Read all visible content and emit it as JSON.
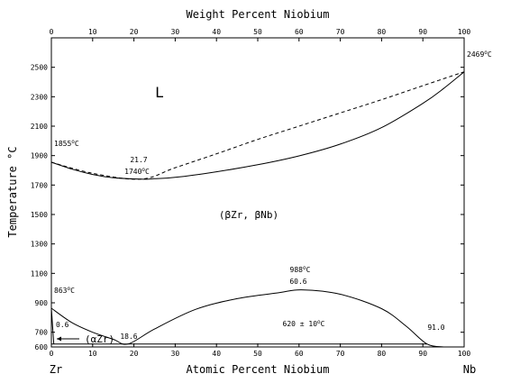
{
  "chart_data": {
    "type": "line",
    "title": "",
    "top_axis_label": "Weight Percent Niobium",
    "xlabel": "Atomic Percent Niobium",
    "ylabel": "Temperature °C",
    "xlim": [
      0,
      100
    ],
    "ylim": [
      600,
      2700
    ],
    "x_ticks": [
      0,
      10,
      20,
      30,
      40,
      50,
      60,
      70,
      80,
      90,
      100
    ],
    "top_ticks": [
      0,
      10,
      20,
      30,
      40,
      50,
      60,
      70,
      80,
      90,
      100
    ],
    "y_ticks": [
      600,
      700,
      900,
      1100,
      1300,
      1500,
      1700,
      1900,
      2100,
      2300,
      2500
    ],
    "left_element": "Zr",
    "right_element": "Nb",
    "grid": false,
    "series": [
      {
        "style": "solid",
        "points": [
          [
            0,
            1855
          ],
          [
            5,
            1808
          ],
          [
            10,
            1772
          ],
          [
            15,
            1750
          ],
          [
            21.7,
            1740
          ],
          [
            25,
            1743
          ],
          [
            30,
            1752
          ],
          [
            40,
            1790
          ],
          [
            50,
            1838
          ],
          [
            60,
            1898
          ],
          [
            70,
            1978
          ],
          [
            80,
            2090
          ],
          [
            90,
            2255
          ],
          [
            95,
            2355
          ],
          [
            100,
            2469
          ]
        ]
      },
      {
        "style": "dashed",
        "points": [
          [
            0,
            1855
          ],
          [
            10,
            1780
          ],
          [
            21.7,
            1740
          ],
          [
            30,
            1818
          ],
          [
            40,
            1912
          ],
          [
            50,
            2010
          ],
          [
            60,
            2100
          ],
          [
            70,
            2190
          ],
          [
            80,
            2280
          ],
          [
            90,
            2375
          ],
          [
            100,
            2469
          ]
        ]
      },
      {
        "style": "solid",
        "points": [
          [
            0,
            863
          ],
          [
            5,
            765
          ],
          [
            10,
            700
          ],
          [
            15,
            652
          ],
          [
            18.6,
            620
          ],
          [
            25,
            722
          ],
          [
            35,
            856
          ],
          [
            45,
            928
          ],
          [
            55,
            968
          ],
          [
            60.6,
            988
          ],
          [
            70,
            958
          ],
          [
            80,
            860
          ],
          [
            86,
            740
          ],
          [
            91,
            620
          ],
          [
            95,
            600
          ]
        ]
      },
      {
        "style": "solid",
        "points": [
          [
            0,
            620
          ],
          [
            91,
            620
          ]
        ]
      },
      {
        "style": "solid",
        "points": [
          [
            0,
            863
          ],
          [
            0.6,
            620
          ]
        ]
      }
    ],
    "annotations": {
      "liquid": "L",
      "bcc": "(βZr, βNb)",
      "alpha": "(αZr)",
      "zr_melt_val": "1855",
      "nb_melt_val": "2469",
      "min_comp": "21.7",
      "min_temp_val": "1740",
      "zr_trans_val": "863",
      "gap_top_val": "988",
      "gap_top_comp": "60.6",
      "mono_temp": "620 ± 10",
      "left_comp": "0.6",
      "mono_comp": "18.6",
      "right_comp": "91.0",
      "deg_unit": "C",
      "deg_symbol": "o"
    }
  }
}
